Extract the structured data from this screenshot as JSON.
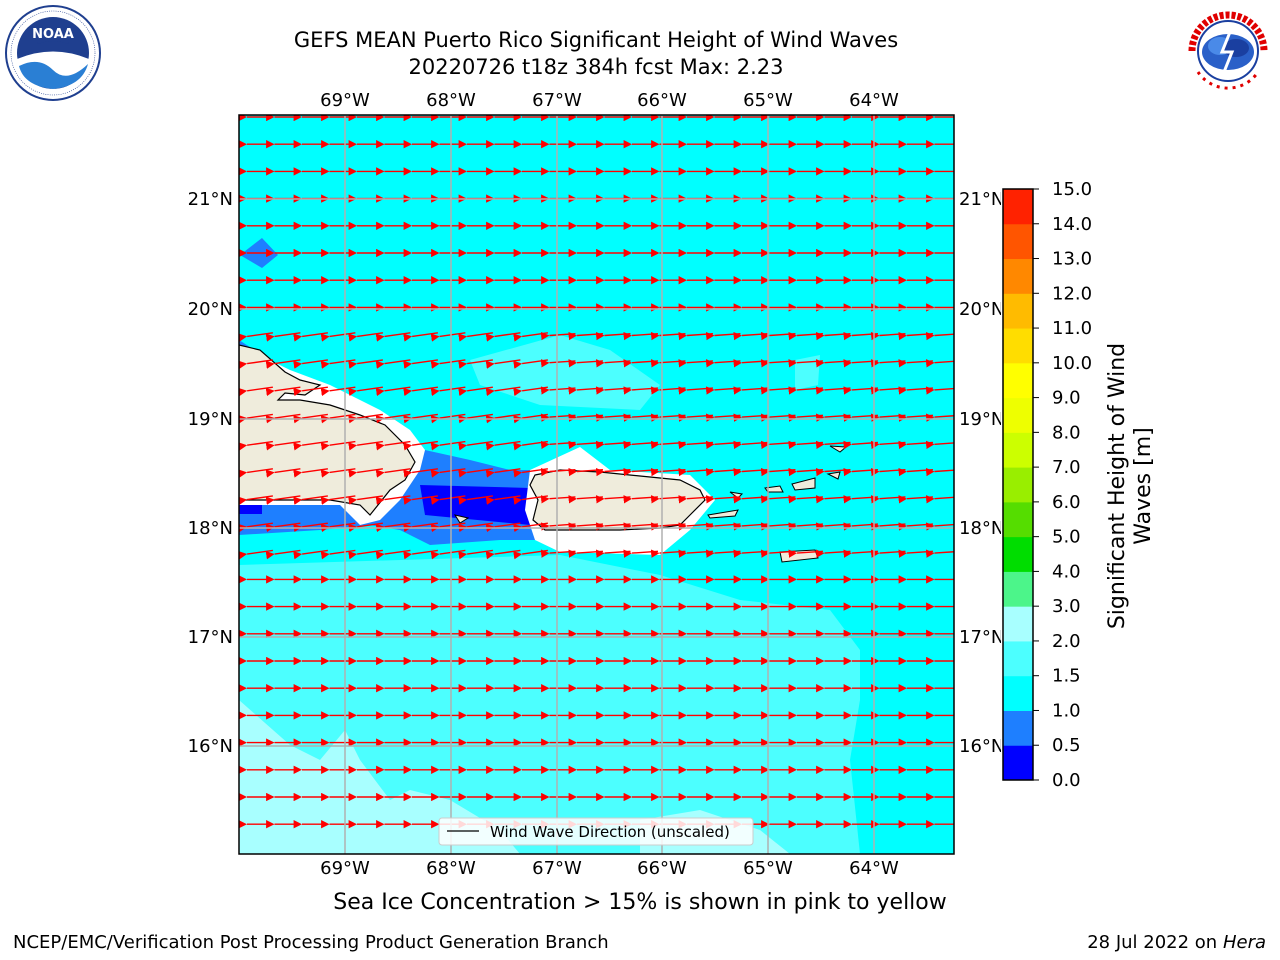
{
  "header": {
    "title_line1": "GEFS MEAN Puerto Rico Significant Height of Wind Waves",
    "title_line2": "20220726 t18z 384h fcst   Max: 2.23"
  },
  "logos": {
    "left": {
      "name": "NOAA",
      "ring_text": "NATIONAL OCEANIC AND ATMOSPHERIC ADMINISTRATION · U.S. DEPARTMENT OF COMMERCE"
    },
    "right": {
      "name": "NATIONAL WEATHER SERVICE"
    }
  },
  "map": {
    "lon_labels": [
      "69°W",
      "68°W",
      "67°W",
      "66°W",
      "65°W",
      "64°W"
    ],
    "lat_labels": [
      "21°N",
      "20°N",
      "19°N",
      "18°N",
      "17°N",
      "16°N"
    ],
    "legend_label": "Wind Wave Direction (unscaled)",
    "colors": {
      "ocean": "#00ffff",
      "land": "#efecdc",
      "arrow": "#ff0000",
      "grid": "#b0b0b0"
    }
  },
  "colorbar": {
    "label": "Significant Height of Wind Waves [m]",
    "label_line1": "Significant Height of Wind",
    "label_line2": "Waves [m]",
    "ticks": [
      "15.0",
      "14.0",
      "13.0",
      "12.0",
      "11.0",
      "10.0",
      "9.0",
      "8.0",
      "7.0",
      "6.0",
      "5.0",
      "4.0",
      "3.0",
      "2.0",
      "1.5",
      "1.0",
      "0.5",
      "0.0"
    ],
    "colors_bottom_to_top": [
      "#0000ff",
      "#1e7fff",
      "#00ffff",
      "#4cffff",
      "#a8ffff",
      "#4cf58a",
      "#20e640",
      "#00cc00",
      "#66dd00",
      "#aaee00",
      "#ccff00",
      "#eeff00",
      "#ffff00",
      "#ffcc00",
      "#ffaa00",
      "#ff8800",
      "#ff5500",
      "#ff2200",
      "#ff0000"
    ]
  },
  "note": "Sea Ice Concentration > 15% is shown in pink to yellow",
  "footer": {
    "left": "NCEP/EMC/Verification Post Processing Product Generation Branch",
    "right_date": "28 Jul 2022 on",
    "right_host": "Hera"
  }
}
